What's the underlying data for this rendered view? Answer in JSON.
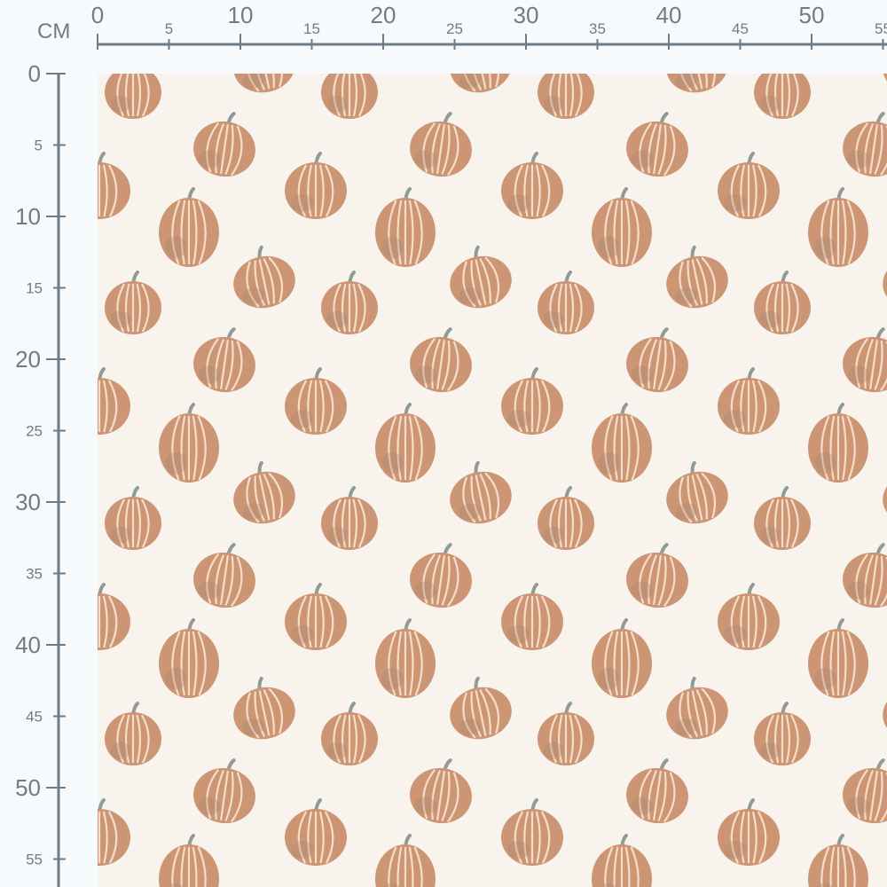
{
  "ruler": {
    "unit": "CM",
    "top_labels": [
      "0",
      "5",
      "10",
      "15",
      "20",
      "25",
      "30",
      "35",
      "40",
      "45",
      "50",
      "55"
    ],
    "left_labels": [
      "0",
      "5",
      "10",
      "15",
      "20",
      "25",
      "30",
      "35",
      "40",
      "45",
      "50",
      "55"
    ],
    "color": "#6f7c86"
  },
  "fabric": {
    "background": "#f8f4ed",
    "motif": "pumpkin",
    "pumpkin_color": "#cc9574",
    "rib_color": "#f6ddc9",
    "stem_color": "#8e9c98"
  }
}
